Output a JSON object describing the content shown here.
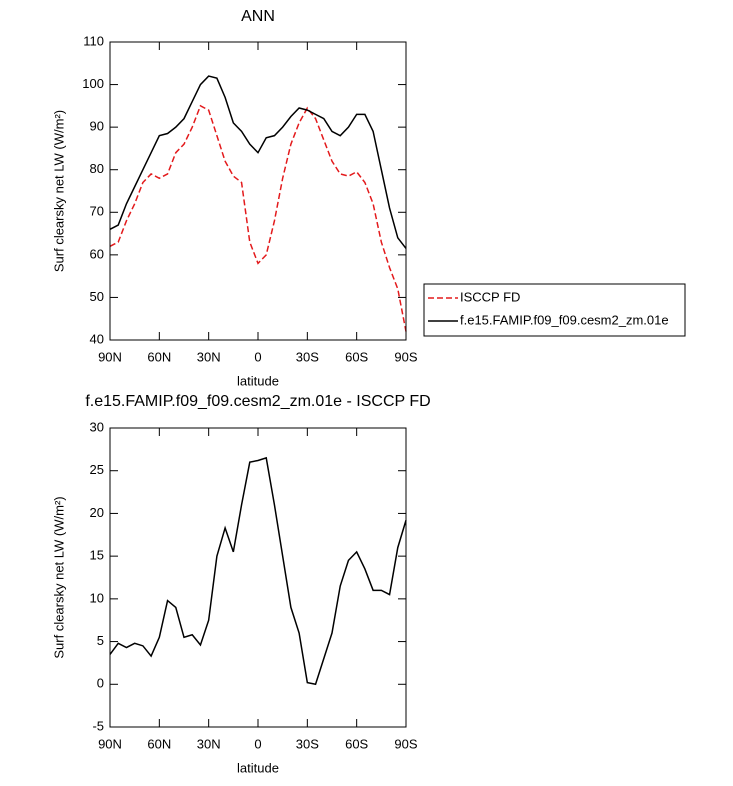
{
  "chart_data": [
    {
      "type": "line",
      "title": "ANN",
      "xlabel": "latitude",
      "ylabel": "Surf clearsky net LW (W/m²)",
      "x": [
        -90,
        -85,
        -80,
        -75,
        -70,
        -65,
        -60,
        -55,
        -50,
        -45,
        -40,
        -35,
        -30,
        -25,
        -20,
        -15,
        -10,
        -5,
        0,
        5,
        10,
        15,
        20,
        25,
        30,
        35,
        40,
        45,
        50,
        55,
        60,
        65,
        70,
        75,
        80,
        85,
        90
      ],
      "series": [
        {
          "name": "ISCCP FD",
          "color": "#e31a1c",
          "dash": true,
          "values": [
            62,
            63,
            68,
            72,
            77,
            79,
            78,
            79,
            84,
            86,
            90,
            95,
            94,
            88,
            82,
            78.5,
            77,
            63,
            58,
            60,
            68,
            78,
            86,
            91,
            94.5,
            92,
            87,
            82,
            79,
            78.5,
            79.5,
            77,
            72,
            63,
            57,
            52,
            42
          ]
        },
        {
          "name": "f.e15.FAMIP.f09_f09.cesm2_zm.01e",
          "color": "#000000",
          "dash": false,
          "values": [
            66,
            67,
            72,
            76,
            80,
            84,
            88,
            88.5,
            90,
            92,
            96,
            100,
            102,
            101.5,
            97,
            91,
            89,
            86,
            84,
            87.5,
            88,
            90,
            92.5,
            94.5,
            94,
            93,
            92,
            89,
            88,
            90,
            93,
            93,
            89,
            80,
            71,
            64,
            61.5
          ]
        }
      ],
      "xlim": [
        -90,
        90
      ],
      "xticks": [
        {
          "value": -90,
          "label": "90N"
        },
        {
          "value": -60,
          "label": "60N"
        },
        {
          "value": -30,
          "label": "30N"
        },
        0,
        {
          "value": 30,
          "label": "30S"
        },
        {
          "value": 60,
          "label": "60S"
        },
        {
          "value": 90,
          "label": "90S"
        }
      ],
      "ylim": [
        40,
        110
      ],
      "yticks": [
        40,
        50,
        60,
        70,
        80,
        90,
        100,
        110
      ],
      "legend": "right"
    },
    {
      "type": "line",
      "title": "f.e15.FAMIP.f09_f09.cesm2_zm.01e - ISCCP FD",
      "xlabel": "latitude",
      "ylabel": "Surf clearsky net LW (W/m²)",
      "x": [
        -90,
        -85,
        -80,
        -75,
        -70,
        -65,
        -60,
        -55,
        -50,
        -45,
        -40,
        -35,
        -30,
        -25,
        -20,
        -15,
        -10,
        -5,
        0,
        5,
        10,
        15,
        20,
        25,
        30,
        35,
        40,
        45,
        50,
        55,
        60,
        65,
        70,
        75,
        80,
        85,
        90
      ],
      "series": [
        {
          "color": "#000000",
          "dash": false,
          "values": [
            3.5,
            4.8,
            4.3,
            4.8,
            4.5,
            3.3,
            5.5,
            9.8,
            9,
            5.5,
            5.8,
            4.6,
            7.5,
            15,
            18.3,
            15.5,
            21,
            26,
            26.2,
            26.5,
            21,
            15,
            9,
            6,
            0.2,
            0,
            3,
            6,
            11.5,
            14.5,
            15.5,
            13.5,
            11,
            11,
            10.5,
            16,
            19.2
          ]
        }
      ],
      "xlim": [
        -90,
        90
      ],
      "xticks": [
        {
          "value": -90,
          "label": "90N"
        },
        {
          "value": -60,
          "label": "60N"
        },
        {
          "value": -30,
          "label": "30N"
        },
        0,
        {
          "value": 30,
          "label": "30S"
        },
        {
          "value": 60,
          "label": "60S"
        },
        {
          "value": 90,
          "label": "90S"
        }
      ],
      "ylim": [
        -5,
        30
      ],
      "yticks": [
        -5,
        0,
        5,
        10,
        15,
        20,
        25,
        30
      ]
    }
  ]
}
